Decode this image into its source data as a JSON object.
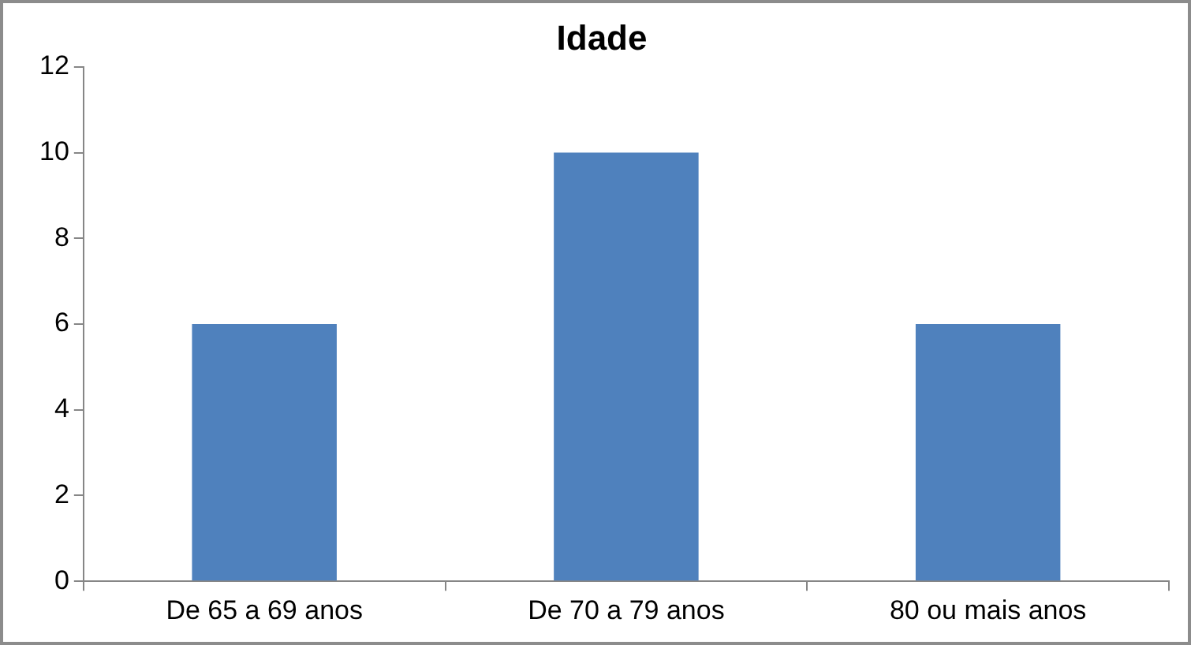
{
  "chart_data": {
    "type": "bar",
    "title": "Idade",
    "categories": [
      "De 65 a 69 anos",
      "De 70 a 79 anos",
      "80 ou mais anos"
    ],
    "values": [
      6,
      10,
      6
    ],
    "color": "#4f81bd",
    "ylim": [
      0,
      12
    ],
    "yticks": [
      0,
      2,
      4,
      6,
      8,
      10,
      12
    ],
    "grid": false,
    "legend": false
  }
}
